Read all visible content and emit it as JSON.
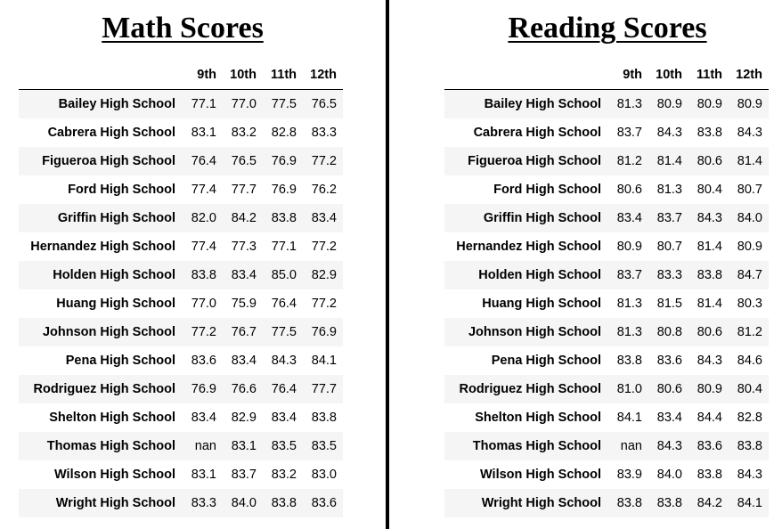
{
  "math": {
    "title": "Math Scores",
    "columns": [
      "",
      "9th",
      "10th",
      "11th",
      "12th"
    ],
    "rows": [
      {
        "school": "Bailey High School",
        "scores": [
          "77.1",
          "77.0",
          "77.5",
          "76.5"
        ]
      },
      {
        "school": "Cabrera High School",
        "scores": [
          "83.1",
          "83.2",
          "82.8",
          "83.3"
        ]
      },
      {
        "school": "Figueroa High School",
        "scores": [
          "76.4",
          "76.5",
          "76.9",
          "77.2"
        ]
      },
      {
        "school": "Ford High School",
        "scores": [
          "77.4",
          "77.7",
          "76.9",
          "76.2"
        ]
      },
      {
        "school": "Griffin High School",
        "scores": [
          "82.0",
          "84.2",
          "83.8",
          "83.4"
        ]
      },
      {
        "school": "Hernandez High School",
        "scores": [
          "77.4",
          "77.3",
          "77.1",
          "77.2"
        ]
      },
      {
        "school": "Holden High School",
        "scores": [
          "83.8",
          "83.4",
          "85.0",
          "82.9"
        ]
      },
      {
        "school": "Huang High School",
        "scores": [
          "77.0",
          "75.9",
          "76.4",
          "77.2"
        ]
      },
      {
        "school": "Johnson High School",
        "scores": [
          "77.2",
          "76.7",
          "77.5",
          "76.9"
        ]
      },
      {
        "school": "Pena High School",
        "scores": [
          "83.6",
          "83.4",
          "84.3",
          "84.1"
        ]
      },
      {
        "school": "Rodriguez High School",
        "scores": [
          "76.9",
          "76.6",
          "76.4",
          "77.7"
        ]
      },
      {
        "school": "Shelton High School",
        "scores": [
          "83.4",
          "82.9",
          "83.4",
          "83.8"
        ]
      },
      {
        "school": "Thomas High School",
        "scores": [
          "nan",
          "83.1",
          "83.5",
          "83.5"
        ]
      },
      {
        "school": "Wilson High School",
        "scores": [
          "83.1",
          "83.7",
          "83.2",
          "83.0"
        ]
      },
      {
        "school": "Wright High School",
        "scores": [
          "83.3",
          "84.0",
          "83.8",
          "83.6"
        ]
      }
    ]
  },
  "reading": {
    "title": "Reading Scores",
    "columns": [
      "",
      "9th",
      "10th",
      "11th",
      "12th"
    ],
    "rows": [
      {
        "school": "Bailey High School",
        "scores": [
          "81.3",
          "80.9",
          "80.9",
          "80.9"
        ]
      },
      {
        "school": "Cabrera High School",
        "scores": [
          "83.7",
          "84.3",
          "83.8",
          "84.3"
        ]
      },
      {
        "school": "Figueroa High School",
        "scores": [
          "81.2",
          "81.4",
          "80.6",
          "81.4"
        ]
      },
      {
        "school": "Ford High School",
        "scores": [
          "80.6",
          "81.3",
          "80.4",
          "80.7"
        ]
      },
      {
        "school": "Griffin High School",
        "scores": [
          "83.4",
          "83.7",
          "84.3",
          "84.0"
        ]
      },
      {
        "school": "Hernandez High School",
        "scores": [
          "80.9",
          "80.7",
          "81.4",
          "80.9"
        ]
      },
      {
        "school": "Holden High School",
        "scores": [
          "83.7",
          "83.3",
          "83.8",
          "84.7"
        ]
      },
      {
        "school": "Huang High School",
        "scores": [
          "81.3",
          "81.5",
          "81.4",
          "80.3"
        ]
      },
      {
        "school": "Johnson High School",
        "scores": [
          "81.3",
          "80.8",
          "80.6",
          "81.2"
        ]
      },
      {
        "school": "Pena High School",
        "scores": [
          "83.8",
          "83.6",
          "84.3",
          "84.6"
        ]
      },
      {
        "school": "Rodriguez High School",
        "scores": [
          "81.0",
          "80.6",
          "80.9",
          "80.4"
        ]
      },
      {
        "school": "Shelton High School",
        "scores": [
          "84.1",
          "83.4",
          "84.4",
          "82.8"
        ]
      },
      {
        "school": "Thomas High School",
        "scores": [
          "nan",
          "84.3",
          "83.6",
          "83.8"
        ]
      },
      {
        "school": "Wilson High School",
        "scores": [
          "83.9",
          "84.0",
          "83.8",
          "84.3"
        ]
      },
      {
        "school": "Wright High School",
        "scores": [
          "83.8",
          "83.8",
          "84.2",
          "84.1"
        ]
      }
    ]
  },
  "colors": {
    "stripe": "#f5f5f5",
    "divider": "#000000"
  }
}
